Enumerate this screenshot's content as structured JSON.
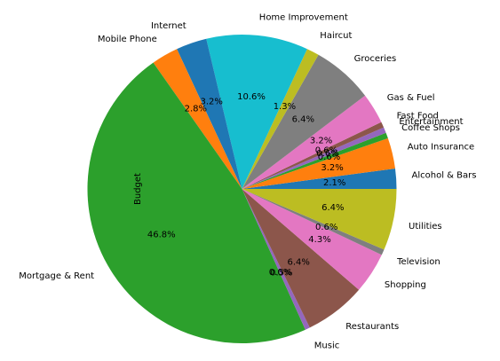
{
  "chart_data": {
    "type": "pie",
    "ylabel": "Budget",
    "start_angle_deg": 0,
    "direction": "counterclockwise",
    "slices": [
      {
        "label": "Alcohol & Bars",
        "pct_label": "2.1%",
        "value": 2.1,
        "color": "#1f77b4"
      },
      {
        "label": "Auto Insurance",
        "pct_label": "3.2%",
        "value": 3.2,
        "color": "#ff7f0e"
      },
      {
        "label": "Coffee Shops",
        "pct_label": "0.6%",
        "value": 0.6,
        "color": "#2ca02c"
      },
      {
        "label": "Entertainment",
        "pct_label": "0.6%",
        "value": 0.6,
        "color": "#9467bd"
      },
      {
        "label": "Fast Food",
        "pct_label": "0.6%",
        "value": 0.6,
        "color": "#8c564b"
      },
      {
        "label": "Gas & Fuel",
        "pct_label": "3.2%",
        "value": 3.2,
        "color": "#e377c2"
      },
      {
        "label": "Groceries",
        "pct_label": "6.4%",
        "value": 6.4,
        "color": "#7f7f7f"
      },
      {
        "label": "Haircut",
        "pct_label": "1.3%",
        "value": 1.3,
        "color": "#bcbd22"
      },
      {
        "label": "Home Improvement",
        "pct_label": "10.6%",
        "value": 10.6,
        "color": "#17becf"
      },
      {
        "label": "Internet",
        "pct_label": "3.2%",
        "value": 3.2,
        "color": "#1f77b4"
      },
      {
        "label": "Mobile Phone",
        "pct_label": "2.8%",
        "value": 2.8,
        "color": "#ff7f0e"
      },
      {
        "label": "Mortgage & Rent",
        "pct_label": "46.8%",
        "value": 46.8,
        "color": "#2ca02c"
      },
      {
        "label": "Music",
        "pct_label": "0.5%",
        "value": 0.5,
        "color": "#9467bd"
      },
      {
        "label": "Restaurants",
        "pct_label": "6.4%",
        "value": 6.4,
        "color": "#8c564b"
      },
      {
        "label": "Shopping",
        "pct_label": "4.3%",
        "value": 4.3,
        "color": "#e377c2"
      },
      {
        "label": "Television",
        "pct_label": "0.6%",
        "value": 0.6,
        "color": "#7f7f7f"
      },
      {
        "label": "Utilities",
        "pct_label": "6.4%",
        "value": 6.4,
        "color": "#bcbd22"
      }
    ],
    "extra_labels": [
      {
        "text": "0.0%"
      }
    ]
  }
}
